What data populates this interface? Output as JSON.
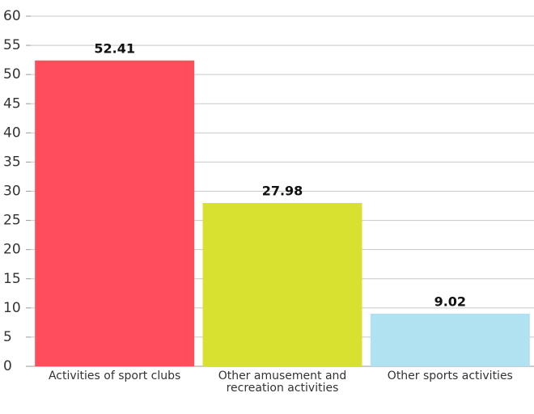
{
  "chart_data": {
    "type": "bar",
    "categories": [
      "Activities of sport clubs",
      "Other amusement and recreation activities",
      "Other sports activities"
    ],
    "values": [
      52.41,
      27.98,
      9.02
    ],
    "colors": [
      "#ff4d5b",
      "#d8e030",
      "#b0e2f2"
    ],
    "ylim": [
      0,
      60
    ],
    "yticks": [
      0,
      5,
      10,
      15,
      20,
      25,
      30,
      35,
      40,
      45,
      50,
      55,
      60
    ],
    "grid": true
  }
}
